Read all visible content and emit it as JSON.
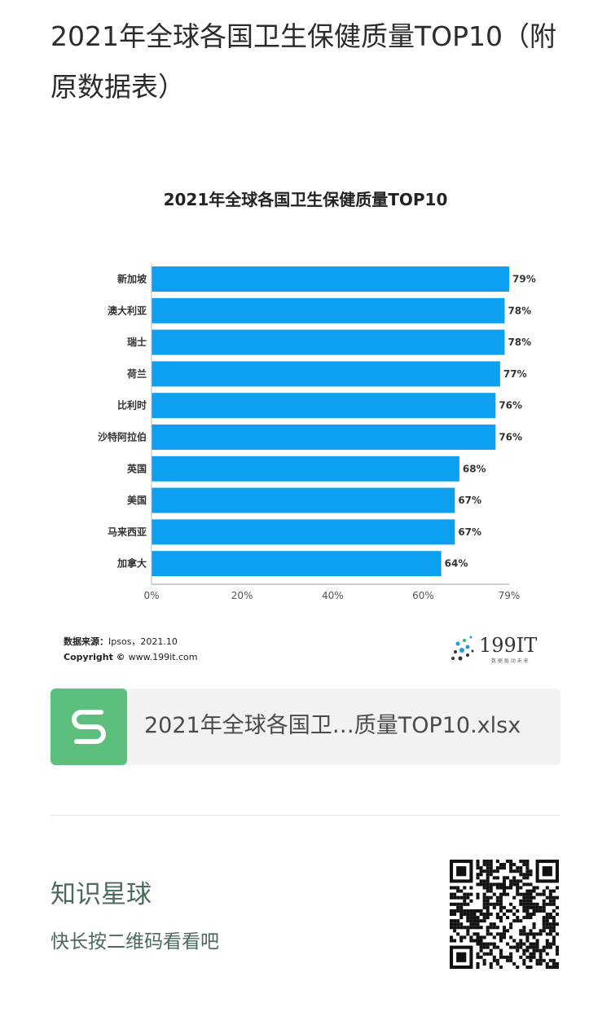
{
  "article": {
    "title": "2021年全球各国卫生保健质量TOP10（附原数据表）"
  },
  "chart_data": {
    "type": "bar",
    "orientation": "horizontal",
    "title": "2021年全球各国卫生保健质量TOP10",
    "categories": [
      "新加坡",
      "澳大利亚",
      "瑞士",
      "荷兰",
      "比利时",
      "沙特阿拉伯",
      "英国",
      "美国",
      "马来西亚",
      "加拿大"
    ],
    "values": [
      79,
      78,
      78,
      77,
      76,
      76,
      68,
      67,
      67,
      64
    ],
    "value_labels": [
      "79%",
      "78%",
      "78%",
      "77%",
      "76%",
      "76%",
      "68%",
      "67%",
      "67%",
      "64%"
    ],
    "xlim": [
      0,
      79
    ],
    "x_ticks": [
      0,
      20,
      40,
      60,
      79
    ],
    "x_tick_labels": [
      "0%",
      "20%",
      "40%",
      "60%",
      "79%"
    ],
    "grid": false,
    "bar_color": "#0d9ff0"
  },
  "chart_footer": {
    "source_label": "数据来源：",
    "source_value": "Ipsos，2021.10",
    "copyright_label": "Copyright ©",
    "copyright_site": "www.199it.com",
    "logo_text": "199IT",
    "logo_tagline": "数 据 驱 动 未 来"
  },
  "attachment": {
    "icon": "spreadsheet-s-icon",
    "icon_color": "#5cbf7d",
    "file_name": "2021年全球各国卫…质量TOP10.xlsx"
  },
  "promo": {
    "title": "知识星球",
    "subtitle": "快长按二维码看看吧",
    "qr_icon": "qr-code-icon"
  }
}
